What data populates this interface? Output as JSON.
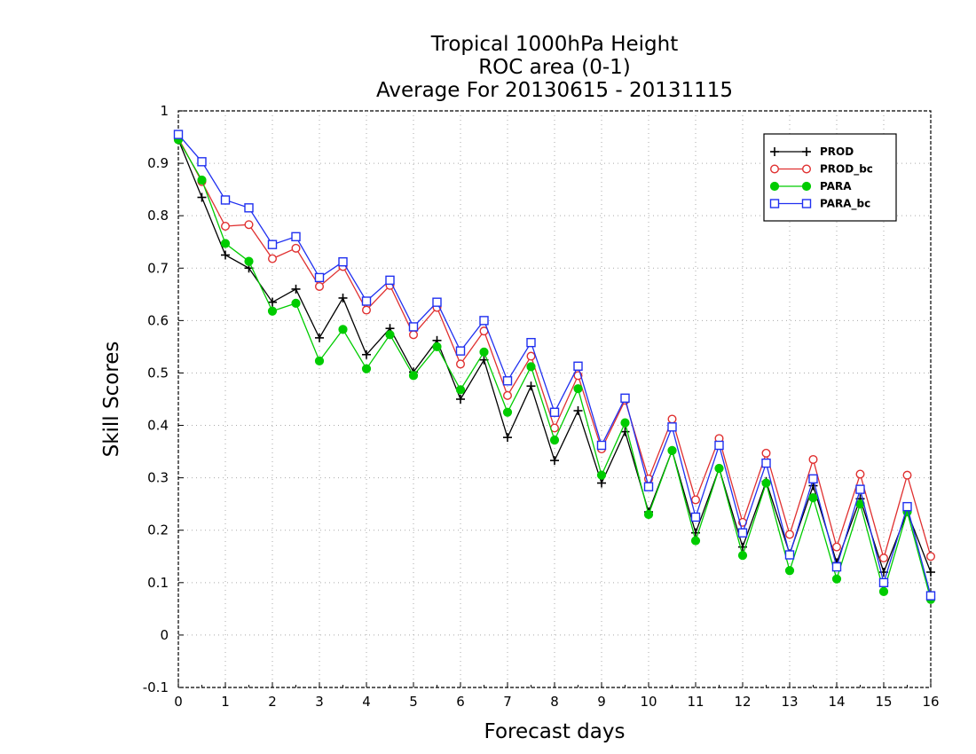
{
  "chart_data": {
    "type": "line",
    "title": [
      "Tropical 1000hPa Height",
      "ROC area (0-1)",
      "Average For 20130615 - 20131115"
    ],
    "xlabel": "Forecast days",
    "ylabel": "Skill Scores",
    "xlim": [
      0,
      16
    ],
    "ylim": [
      -0.1,
      1
    ],
    "x_ticks": [
      0,
      1,
      2,
      3,
      4,
      5,
      6,
      7,
      8,
      9,
      10,
      11,
      12,
      13,
      14,
      15,
      16
    ],
    "y_ticks": [
      -0.1,
      0,
      0.1,
      0.2,
      0.3,
      0.4,
      0.5,
      0.6,
      0.7,
      0.8,
      0.9,
      1
    ],
    "y_tick_labels": [
      "-0.1",
      "0",
      "0.1",
      "0.2",
      "0.3",
      "0.4",
      "0.5",
      "0.6",
      "0.7",
      "0.8",
      "0.9",
      "1"
    ],
    "grid": true,
    "legend_position": "top-right",
    "x": [
      0,
      0.5,
      1,
      1.5,
      2,
      2.5,
      3,
      3.5,
      4,
      4.5,
      5,
      5.5,
      6,
      6.5,
      7,
      7.5,
      8,
      8.5,
      9,
      9.5,
      10,
      10.5,
      11,
      11.5,
      12,
      12.5,
      13,
      13.5,
      14,
      14.5,
      15,
      15.5,
      16
    ],
    "series": [
      {
        "name": "PROD",
        "color": "#000000",
        "marker": "plus",
        "values": [
          0.945,
          0.835,
          0.725,
          0.7,
          0.635,
          0.66,
          0.567,
          0.643,
          0.535,
          0.585,
          0.502,
          0.562,
          0.45,
          0.525,
          0.377,
          0.475,
          0.333,
          0.428,
          0.29,
          0.388,
          0.235,
          0.352,
          0.195,
          0.318,
          0.168,
          0.293,
          0.155,
          0.285,
          0.138,
          0.26,
          0.12,
          0.235,
          0.12
        ]
      },
      {
        "name": "PROD_bc",
        "color": "#e03030",
        "marker": "circle-open",
        "values": [
          0.948,
          0.865,
          0.78,
          0.783,
          0.718,
          0.738,
          0.665,
          0.703,
          0.62,
          0.667,
          0.573,
          0.625,
          0.517,
          0.58,
          0.457,
          0.532,
          0.395,
          0.495,
          0.355,
          0.448,
          0.298,
          0.412,
          0.258,
          0.375,
          0.215,
          0.347,
          0.192,
          0.335,
          0.168,
          0.307,
          0.147,
          0.305,
          0.15
        ]
      },
      {
        "name": "PARA",
        "color": "#00cc00",
        "marker": "circle-filled",
        "values": [
          0.945,
          0.868,
          0.747,
          0.713,
          0.618,
          0.633,
          0.523,
          0.583,
          0.508,
          0.573,
          0.495,
          0.55,
          0.468,
          0.54,
          0.425,
          0.512,
          0.372,
          0.47,
          0.305,
          0.405,
          0.23,
          0.352,
          0.18,
          0.318,
          0.152,
          0.29,
          0.123,
          0.262,
          0.107,
          0.25,
          0.083,
          0.235,
          0.068
        ]
      },
      {
        "name": "PARA_bc",
        "color": "#2030f0",
        "marker": "square-open",
        "values": [
          0.955,
          0.903,
          0.83,
          0.815,
          0.745,
          0.76,
          0.682,
          0.712,
          0.637,
          0.677,
          0.588,
          0.635,
          0.542,
          0.6,
          0.485,
          0.558,
          0.425,
          0.513,
          0.362,
          0.452,
          0.283,
          0.397,
          0.225,
          0.362,
          0.195,
          0.328,
          0.153,
          0.298,
          0.13,
          0.278,
          0.1,
          0.245,
          0.075
        ]
      }
    ]
  }
}
